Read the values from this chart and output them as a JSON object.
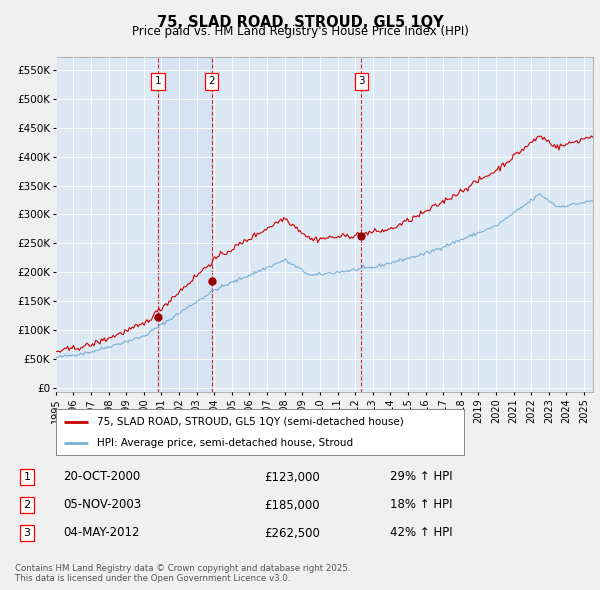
{
  "title": "75, SLAD ROAD, STROUD, GL5 1QY",
  "subtitle": "Price paid vs. HM Land Registry's House Price Index (HPI)",
  "yticks": [
    0,
    50000,
    100000,
    150000,
    200000,
    250000,
    300000,
    350000,
    400000,
    450000,
    500000,
    550000
  ],
  "ytick_labels": [
    "£0",
    "£50K",
    "£100K",
    "£150K",
    "£200K",
    "£250K",
    "£300K",
    "£350K",
    "£400K",
    "£450K",
    "£500K",
    "£550K"
  ],
  "ylim": [
    -8000,
    572000
  ],
  "xlim_start": 1995.0,
  "xlim_end": 2025.5,
  "price_paid_color": "#cc0000",
  "hpi_color": "#7ab0d4",
  "background_color": "#dce9f5",
  "fig_bg_color": "#f0f0f0",
  "grid_color": "#ffffff",
  "transactions": [
    {
      "id": 1,
      "date": "20-OCT-2000",
      "x": 2000.8,
      "price": 123000,
      "pct": "29% ↑ HPI"
    },
    {
      "id": 2,
      "date": "05-NOV-2003",
      "x": 2003.85,
      "price": 185000,
      "pct": "18% ↑ HPI"
    },
    {
      "id": 3,
      "date": "04-MAY-2012",
      "x": 2012.35,
      "price": 262500,
      "pct": "42% ↑ HPI"
    }
  ],
  "legend_entry1": "75, SLAD ROAD, STROUD, GL5 1QY (semi-detached house)",
  "legend_entry2": "HPI: Average price, semi-detached house, Stroud",
  "footnote": "Contains HM Land Registry data © Crown copyright and database right 2025.\nThis data is licensed under the Open Government Licence v3.0.",
  "xticks": [
    1995,
    1996,
    1997,
    1998,
    1999,
    2000,
    2001,
    2002,
    2003,
    2004,
    2005,
    2006,
    2007,
    2008,
    2009,
    2010,
    2011,
    2012,
    2013,
    2014,
    2015,
    2016,
    2017,
    2018,
    2019,
    2020,
    2021,
    2022,
    2023,
    2024,
    2025
  ],
  "table_rows": [
    {
      "id": "1",
      "date": "20-OCT-2000",
      "price": "£123,000",
      "pct": "29% ↑ HPI"
    },
    {
      "id": "2",
      "date": "05-NOV-2003",
      "price": "£185,000",
      "pct": "18% ↑ HPI"
    },
    {
      "id": "3",
      "date": "04-MAY-2012",
      "price": "£262,500",
      "pct": "42% ↑ HPI"
    }
  ]
}
